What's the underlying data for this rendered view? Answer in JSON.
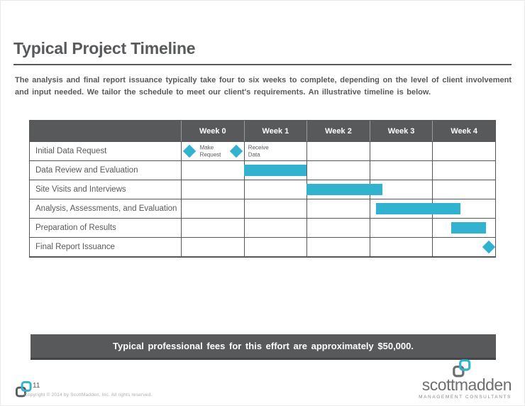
{
  "slide": {
    "title": "Typical Project Timeline",
    "intro": "The analysis and final report issuance typically take four to six weeks to complete, depending on the level of client involvement and input needed. We tailor the schedule to meet our client's requirements. An illustrative timeline is below.",
    "fees_banner": "Typical professional fees for this effort are approximately $50,000.",
    "page_number": "11",
    "copyright": "Copyright © 2014 by ScottMadden, Inc. All rights reserved.",
    "brand": {
      "name": "scottmadden",
      "tagline": "MANAGEMENT CONSULTANTS"
    }
  },
  "colors": {
    "accent_teal": "#31b2cf",
    "dark_gray": "#58595b"
  },
  "chart_data": {
    "type": "gantt-table",
    "title": "Typical Project Timeline",
    "columns": [
      "Week 0",
      "Week 1",
      "Week 2",
      "Week 3",
      "Week 4"
    ],
    "week_span": 5,
    "rows": [
      {
        "task": "Initial Data Request",
        "bars": [],
        "milestones": [
          {
            "at_week": 0.14,
            "label": "Make Request",
            "label_at_week": 0.3
          },
          {
            "at_week": 0.88,
            "label": "Receive Data",
            "label_at_week": 1.07
          }
        ]
      },
      {
        "task": "Data Review and Evaluation",
        "bars": [
          {
            "start_week": 1.0,
            "end_week": 2.0
          }
        ],
        "milestones": []
      },
      {
        "task": "Site Visits and Interviews",
        "bars": [
          {
            "start_week": 2.0,
            "end_week": 3.2
          }
        ],
        "milestones": []
      },
      {
        "task": "Analysis, Assessments, and Evaluation",
        "bars": [
          {
            "start_week": 3.1,
            "end_week": 4.45
          }
        ],
        "milestones": []
      },
      {
        "task": "Preparation of Results",
        "bars": [
          {
            "start_week": 4.3,
            "end_week": 4.85
          }
        ],
        "milestones": []
      },
      {
        "task": "Final Report Issuance",
        "bars": [],
        "milestones": [
          {
            "at_week": 4.9,
            "label": ""
          }
        ]
      }
    ]
  }
}
